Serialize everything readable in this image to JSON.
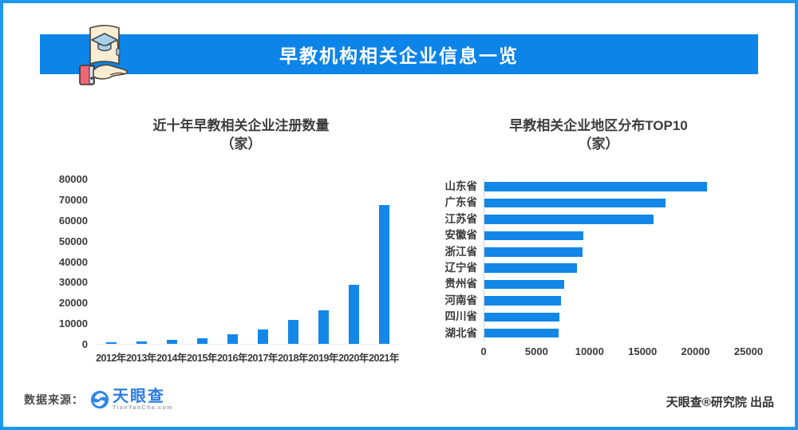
{
  "header": {
    "title": "早教机构相关企业信息一览",
    "icon": "hand-holding-graduation-card-icon"
  },
  "colors": {
    "border_blue": "#1e97ee",
    "banner_blue": "#0d84e8",
    "bar_blue": "#1287e8",
    "title_text": "#3d3d3d",
    "axis_text": "#3a3a3a",
    "logo_blue": "#2b7ce0"
  },
  "chart_data": [
    {
      "type": "bar",
      "orientation": "vertical",
      "title": "近十年早教相关企业注册数量",
      "unit_label": "（家）",
      "categories": [
        "2012年",
        "2013年",
        "2014年",
        "2015年",
        "2016年",
        "2017年",
        "2018年",
        "2019年",
        "2020年",
        "2021年"
      ],
      "values": [
        900,
        1300,
        1900,
        2900,
        4500,
        7100,
        11600,
        16400,
        28700,
        67200
      ],
      "ylim": [
        0,
        80000
      ],
      "yticks": [
        0,
        10000,
        20000,
        30000,
        40000,
        50000,
        60000,
        70000,
        80000
      ],
      "grid": false,
      "legend": "none",
      "bar_color": "#1287e8"
    },
    {
      "type": "bar",
      "orientation": "horizontal",
      "title": "早教相关企业地区分布TOP10",
      "unit_label": "（家）",
      "categories": [
        "山东省",
        "广东省",
        "江苏省",
        "安徽省",
        "浙江省",
        "辽宁省",
        "贵州省",
        "河南省",
        "四川省",
        "湖北省"
      ],
      "values": [
        21000,
        17100,
        16000,
        9300,
        9250,
        8700,
        7500,
        7250,
        7100,
        7000
      ],
      "xlim": [
        0,
        25000
      ],
      "xticks": [
        0,
        5000,
        10000,
        15000,
        20000,
        25000
      ],
      "grid": false,
      "legend": "none",
      "bar_color": "#1287e8"
    }
  ],
  "footer": {
    "source_label": "数据来源：",
    "logo": {
      "text": "天眼查",
      "subtext": "TianYanCha.com"
    },
    "credit": "天眼查®研究院 出品"
  }
}
